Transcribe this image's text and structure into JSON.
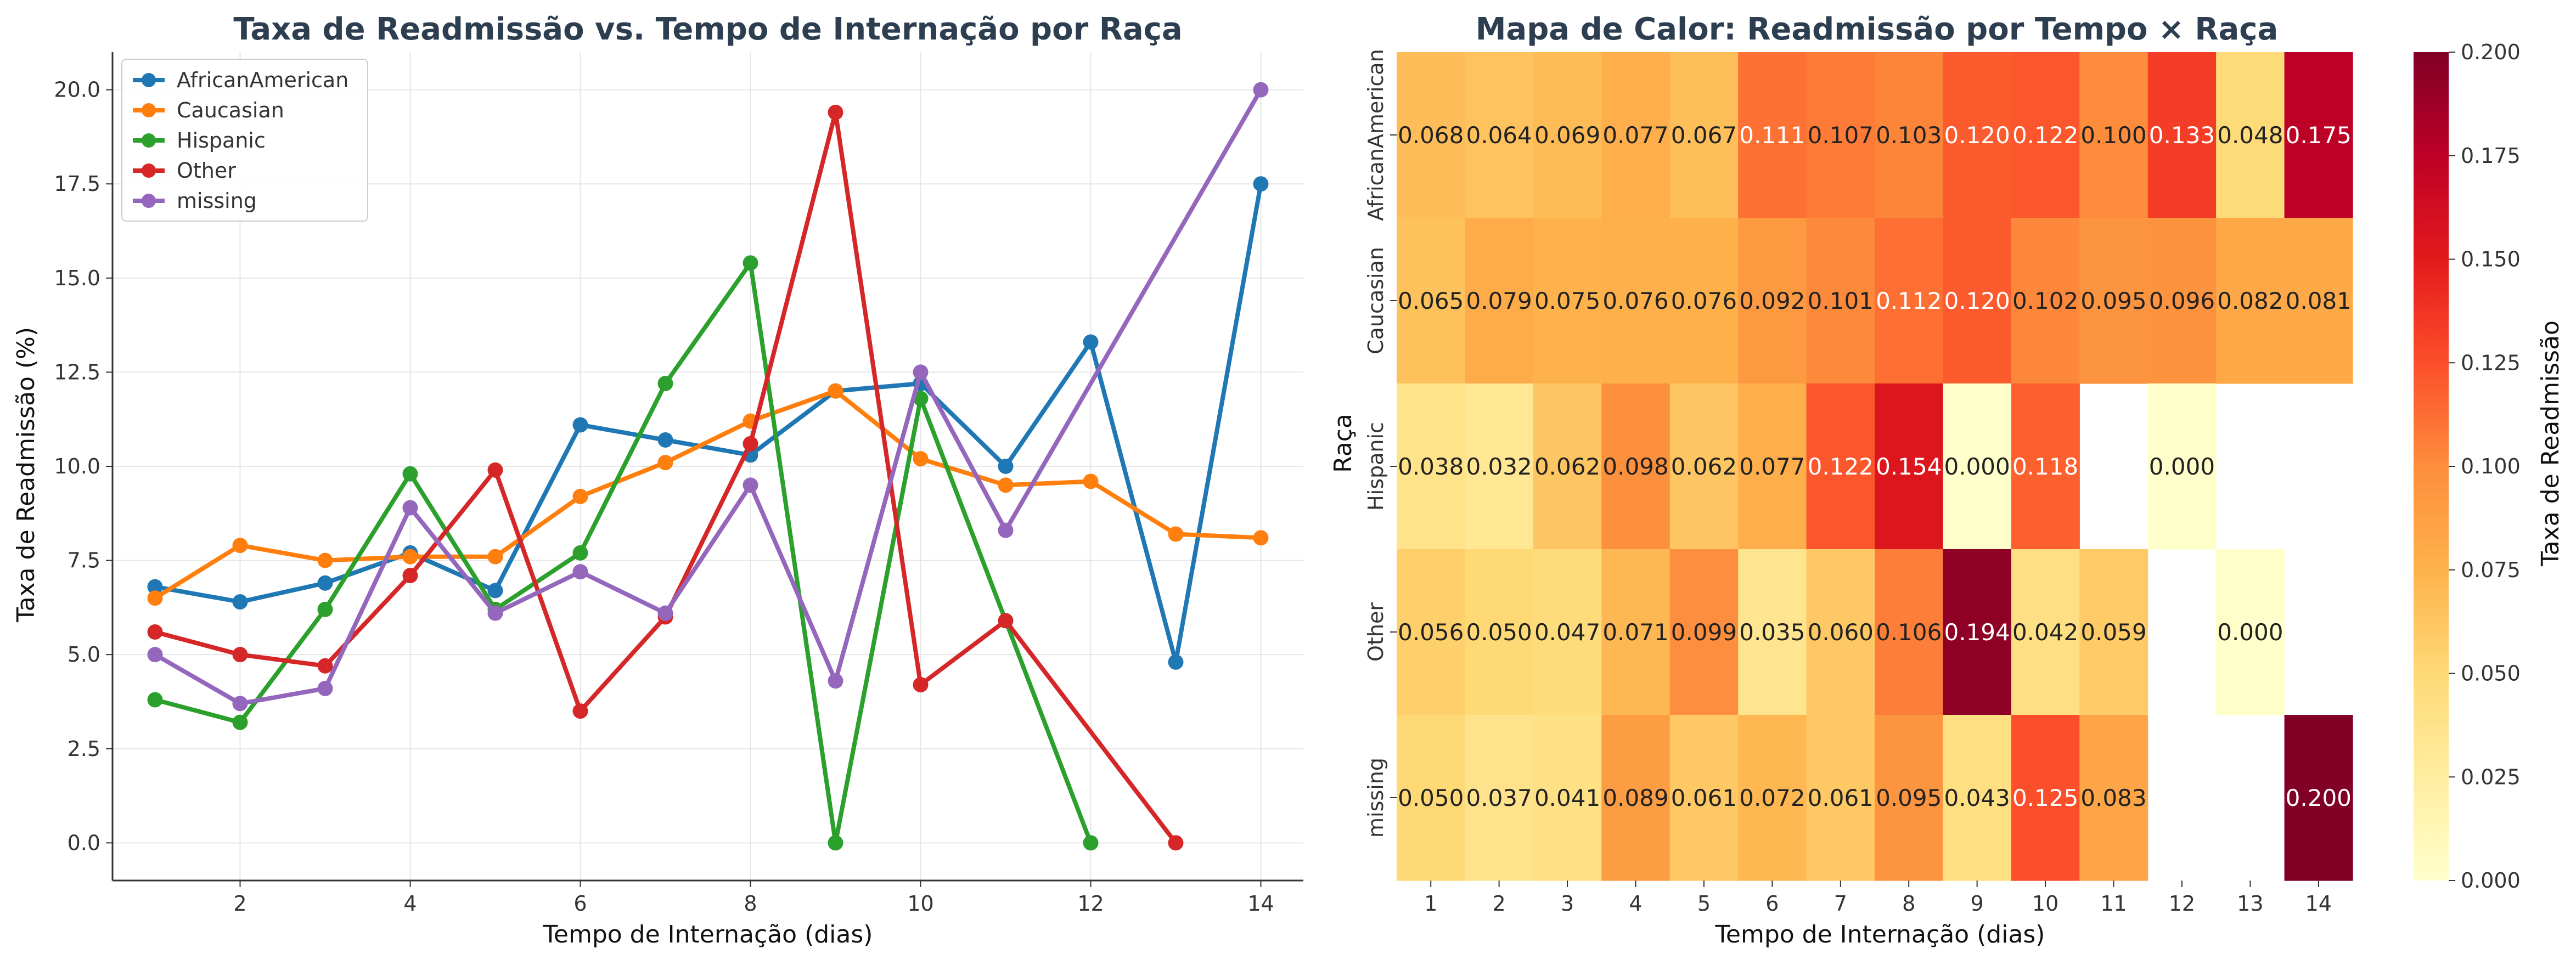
{
  "chart_data": [
    {
      "type": "line",
      "title": "Taxa de Readmissão vs. Tempo de Internação por Raça",
      "xlabel": "Tempo de Internação (dias)",
      "ylabel": "Taxa de Readmissão (%)",
      "xlim": [
        0.5,
        14.5
      ],
      "ylim": [
        -1.0,
        21.0
      ],
      "xticks": [
        2,
        4,
        6,
        8,
        10,
        12,
        14
      ],
      "yticks": [
        0.0,
        2.5,
        5.0,
        7.5,
        10.0,
        12.5,
        15.0,
        17.5,
        20.0
      ],
      "grid": true,
      "legend_position": "top-left",
      "series": [
        {
          "name": "AfricanAmerican",
          "color": "#1f77b4",
          "points": [
            [
              1,
              6.8
            ],
            [
              2,
              6.4
            ],
            [
              3,
              6.9
            ],
            [
              4,
              7.7
            ],
            [
              5,
              6.7
            ],
            [
              6,
              11.1
            ],
            [
              7,
              10.7
            ],
            [
              8,
              10.3
            ],
            [
              9,
              12.0
            ],
            [
              10,
              12.2
            ],
            [
              11,
              10.0
            ],
            [
              12,
              13.3
            ],
            [
              13,
              4.8
            ],
            [
              14,
              17.5
            ]
          ]
        },
        {
          "name": "Caucasian",
          "color": "#ff7f0e",
          "points": [
            [
              1,
              6.5
            ],
            [
              2,
              7.9
            ],
            [
              3,
              7.5
            ],
            [
              4,
              7.6
            ],
            [
              5,
              7.6
            ],
            [
              6,
              9.2
            ],
            [
              7,
              10.1
            ],
            [
              8,
              11.2
            ],
            [
              9,
              12.0
            ],
            [
              10,
              10.2
            ],
            [
              11,
              9.5
            ],
            [
              12,
              9.6
            ],
            [
              13,
              8.2
            ],
            [
              14,
              8.1
            ]
          ]
        },
        {
          "name": "Hispanic",
          "color": "#2ca02c",
          "points": [
            [
              1,
              3.8
            ],
            [
              2,
              3.2
            ],
            [
              3,
              6.2
            ],
            [
              4,
              9.8
            ],
            [
              5,
              6.2
            ],
            [
              6,
              7.7
            ],
            [
              7,
              12.2
            ],
            [
              8,
              15.4
            ],
            [
              9,
              0.0
            ],
            [
              10,
              11.8
            ],
            [
              12,
              0.0
            ]
          ]
        },
        {
          "name": "Other",
          "color": "#d62728",
          "points": [
            [
              1,
              5.6
            ],
            [
              2,
              5.0
            ],
            [
              3,
              4.7
            ],
            [
              4,
              7.1
            ],
            [
              5,
              9.9
            ],
            [
              6,
              3.5
            ],
            [
              7,
              6.0
            ],
            [
              8,
              10.6
            ],
            [
              9,
              19.4
            ],
            [
              10,
              4.2
            ],
            [
              11,
              5.9
            ],
            [
              13,
              0.0
            ]
          ]
        },
        {
          "name": "missing",
          "color": "#9467bd",
          "points": [
            [
              1,
              5.0
            ],
            [
              2,
              3.7
            ],
            [
              3,
              4.1
            ],
            [
              4,
              8.9
            ],
            [
              5,
              6.1
            ],
            [
              6,
              7.2
            ],
            [
              7,
              6.1
            ],
            [
              8,
              9.5
            ],
            [
              9,
              4.3
            ],
            [
              10,
              12.5
            ],
            [
              11,
              8.3
            ],
            [
              14,
              20.0
            ]
          ]
        }
      ]
    },
    {
      "type": "heatmap",
      "title": "Mapa de Calor: Readmissão por Tempo × Raça",
      "xlabel": "Tempo de Internação (dias)",
      "ylabel": "Raça",
      "colorbar_label": "Taxa de Readmissão",
      "colormap": "YlOrRd",
      "vmin": 0.0,
      "vmax": 0.2,
      "colorbar_ticks": [
        "0.000",
        "0.025",
        "0.050",
        "0.075",
        "0.100",
        "0.125",
        "0.150",
        "0.175",
        "0.200"
      ],
      "x_categories": [
        "1",
        "2",
        "3",
        "4",
        "5",
        "6",
        "7",
        "8",
        "9",
        "10",
        "11",
        "12",
        "13",
        "14"
      ],
      "y_categories": [
        "AfricanAmerican",
        "Caucasian",
        "Hispanic",
        "Other",
        "missing"
      ],
      "values": [
        [
          0.068,
          0.064,
          0.069,
          0.077,
          0.067,
          0.111,
          0.107,
          0.103,
          0.12,
          0.122,
          0.1,
          0.133,
          0.048,
          0.175
        ],
        [
          0.065,
          0.079,
          0.075,
          0.076,
          0.076,
          0.092,
          0.101,
          0.112,
          0.12,
          0.102,
          0.095,
          0.096,
          0.082,
          0.081
        ],
        [
          0.038,
          0.032,
          0.062,
          0.098,
          0.062,
          0.077,
          0.122,
          0.154,
          0.0,
          0.118,
          null,
          0.0,
          null,
          null
        ],
        [
          0.056,
          0.05,
          0.047,
          0.071,
          0.099,
          0.035,
          0.06,
          0.106,
          0.194,
          0.042,
          0.059,
          null,
          0.0,
          null
        ],
        [
          0.05,
          0.037,
          0.041,
          0.089,
          0.061,
          0.072,
          0.061,
          0.095,
          0.043,
          0.125,
          0.083,
          null,
          null,
          0.2
        ]
      ]
    }
  ]
}
